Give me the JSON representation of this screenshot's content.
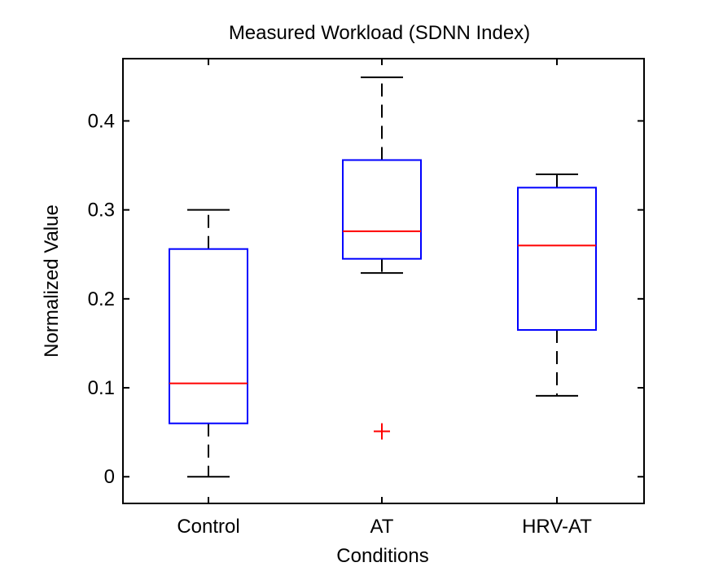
{
  "chart_data": {
    "type": "boxplot",
    "title": "Measured Workload (SDNN Index)",
    "xlabel": "Conditions",
    "ylabel": "Normalized Value",
    "ylim": [
      -0.03,
      0.47
    ],
    "yticks": [
      0,
      0.1,
      0.2,
      0.3,
      0.4
    ],
    "ytick_labels": [
      "0",
      "0.1",
      "0.2",
      "0.3",
      "0.4"
    ],
    "grid": false,
    "categories": [
      "Control",
      "AT",
      "HRV-AT"
    ],
    "boxes": [
      {
        "name": "Control",
        "whisker_low": 0.0,
        "q1": 0.06,
        "median": 0.105,
        "q3": 0.256,
        "whisker_high": 0.3,
        "outliers": []
      },
      {
        "name": "AT",
        "whisker_low": 0.229,
        "q1": 0.245,
        "median": 0.276,
        "q3": 0.356,
        "whisker_high": 0.449,
        "outliers": [
          0.051
        ]
      },
      {
        "name": "HRV-AT",
        "whisker_low": 0.091,
        "q1": 0.165,
        "median": 0.26,
        "q3": 0.325,
        "whisker_high": 0.34,
        "outliers": []
      }
    ],
    "colors": {
      "box": "#0000ff",
      "median": "#ff0000",
      "whisker": "#000000",
      "outlier": "#ff0000",
      "axes": "#000000"
    }
  }
}
